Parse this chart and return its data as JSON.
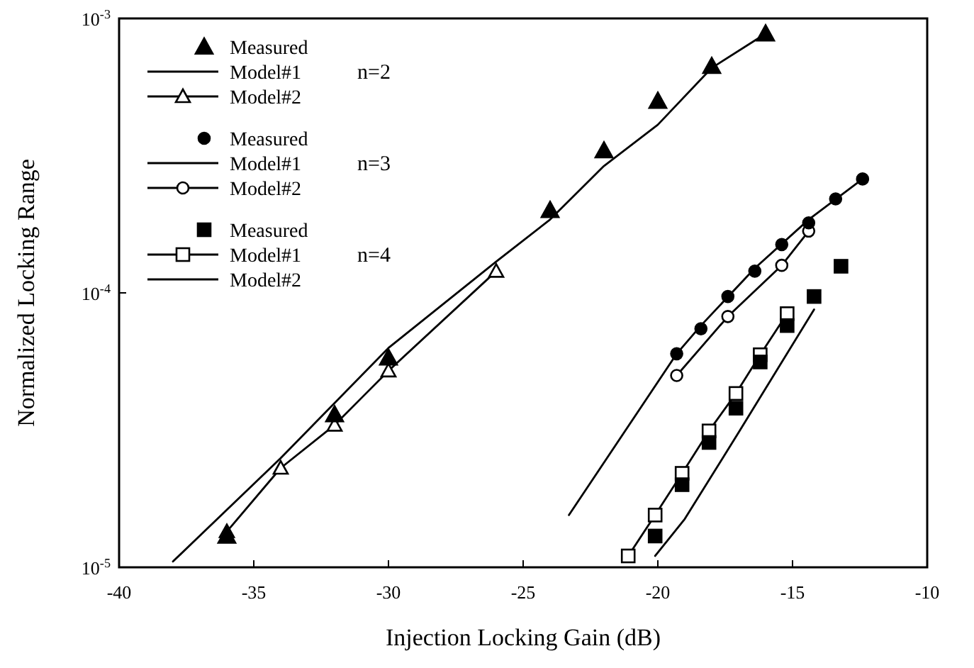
{
  "chart_data": {
    "type": "line",
    "xlabel": "Injection Locking Gain (dB)",
    "ylabel": "Normalized Locking Range",
    "log": "y",
    "xlim": [
      -40,
      -10
    ],
    "xticks": [
      -40,
      -35,
      -30,
      -25,
      -20,
      -15,
      -10
    ],
    "ylim": [
      1e-05,
      0.001
    ],
    "yticks": [
      {
        "value": 1e-05,
        "label": "10$^{-5}$"
      },
      {
        "value": 0.0001,
        "label": "10$^{-4}$"
      },
      {
        "value": 0.001,
        "label": "10$^{-3}$"
      }
    ],
    "grid": false,
    "legend": "top left",
    "line_style": "solid",
    "annotations": [
      "n=2",
      "n=3",
      "n=4"
    ],
    "series": [
      {
        "name": "Measured",
        "type": "scatter",
        "marker": "triangle",
        "color": "#000000",
        "x": [
          -36,
          -32,
          -30,
          -24,
          -22,
          -20,
          -18,
          -16
        ],
        "values": [
          1.3e-05,
          3.6e-05,
          5.8e-05,
          0.0002,
          0.00033,
          0.0005,
          0.00067,
          0.00088
        ]
      },
      {
        "name": "Model#1",
        "marker": "none",
        "color": "#000000",
        "x": [
          -38,
          -34,
          -30,
          -26,
          -24,
          -22,
          -20,
          -18,
          -16
        ],
        "values": [
          1.05e-05,
          2.5e-05,
          6.3e-05,
          0.00013,
          0.000185,
          0.00029,
          0.00041,
          0.00066,
          0.00088
        ]
      },
      {
        "name": "Model#2",
        "marker": "triangle",
        "color": "#000000",
        "x": [
          -36,
          -34,
          -32,
          -30,
          -26
        ],
        "values": [
          1.35e-05,
          2.3e-05,
          3.3e-05,
          5.2e-05,
          0.00012
        ]
      },
      {
        "name": "Measured",
        "type": "scatter",
        "marker": "circle",
        "color": "#000000",
        "x": [
          -19.3,
          -18.4,
          -17.4,
          -16.4,
          -15.4,
          -14.4,
          -13.4,
          -12.4
        ],
        "values": [
          6e-05,
          7.4e-05,
          9.7e-05,
          0.00012,
          0.00015,
          0.00018,
          0.00022,
          0.00026
        ]
      },
      {
        "name": "Model#1",
        "marker": "none",
        "color": "#000000",
        "x": [
          -23.3,
          -19.3,
          -18.4,
          -16.4,
          -14.4,
          -12.4
        ],
        "values": [
          1.55e-05,
          6e-05,
          7.6e-05,
          0.000123,
          0.000185,
          0.00026
        ]
      },
      {
        "name": "Model#2",
        "marker": "circle",
        "color": "#000000",
        "x": [
          -19.3,
          -17.4,
          -15.4,
          -14.4
        ],
        "values": [
          5e-05,
          8.2e-05,
          0.000126,
          0.000168
        ]
      },
      {
        "name": "Measured",
        "type": "scatter",
        "marker": "square",
        "color": "#000000",
        "x": [
          -20.1,
          -19.1,
          -18.1,
          -17.1,
          -16.2,
          -15.2,
          -14.2,
          -13.2
        ],
        "values": [
          1.3e-05,
          2e-05,
          2.85e-05,
          3.8e-05,
          5.6e-05,
          7.6e-05,
          9.7e-05,
          0.000125
        ]
      },
      {
        "name": "Model#1",
        "marker": "square",
        "color": "#000000",
        "x": [
          -21.1,
          -20.1,
          -19.1,
          -18.1,
          -17.1,
          -16.2,
          -15.2
        ],
        "values": [
          1.1e-05,
          1.55e-05,
          2.2e-05,
          3.14e-05,
          4.3e-05,
          5.95e-05,
          8.4e-05
        ]
      },
      {
        "name": "Model#2",
        "marker": "none",
        "color": "#000000",
        "x": [
          -20.1,
          -19,
          -17,
          -14.2
        ],
        "values": [
          1.1e-05,
          1.5e-05,
          3.1e-05,
          8.7e-05
        ]
      }
    ]
  }
}
